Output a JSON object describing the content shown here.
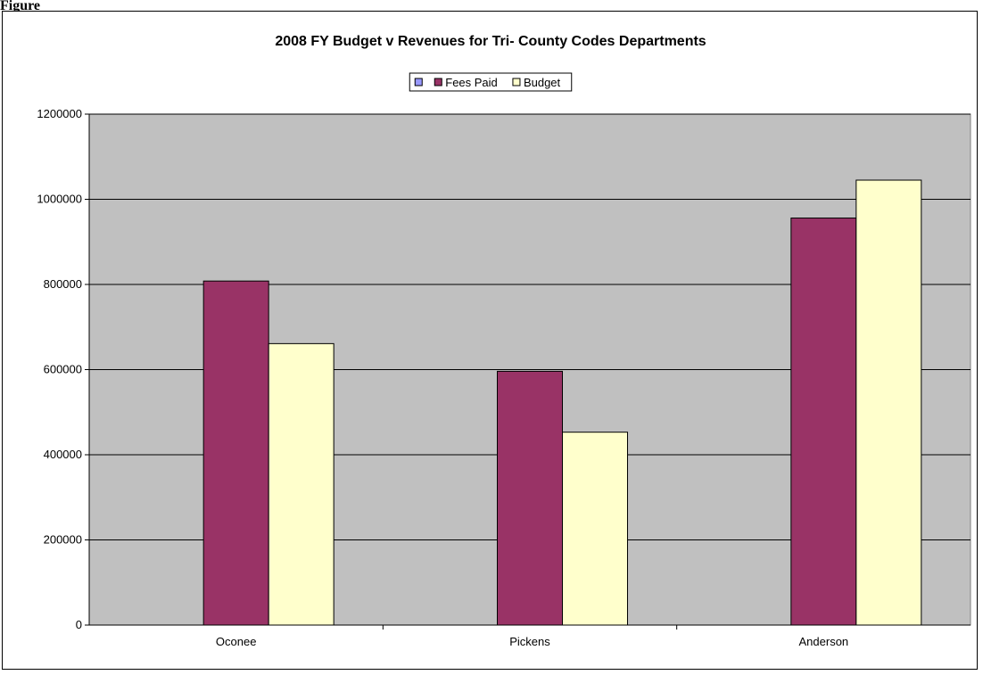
{
  "figure_label": "Figure",
  "chart_data": {
    "type": "bar",
    "title": "2008 FY Budget v Revenues for Tri- County Codes Departments",
    "categories": [
      "Oconee",
      "Pickens",
      "Anderson"
    ],
    "ylim": [
      0,
      1200000
    ],
    "yticks": [
      0,
      200000,
      400000,
      600000,
      800000,
      1000000,
      1200000
    ],
    "grid": true,
    "legend_position": "top-center",
    "plot_background": "#c0c0c0",
    "series": [
      {
        "name": "",
        "color": "#9999ff",
        "values": [
          0,
          0,
          0
        ]
      },
      {
        "name": "Fees Paid",
        "color": "#993366",
        "values": [
          808000,
          596000,
          956000
        ]
      },
      {
        "name": "Budget",
        "color": "#ffffcc",
        "values": [
          661000,
          453000,
          1045000
        ]
      }
    ]
  }
}
